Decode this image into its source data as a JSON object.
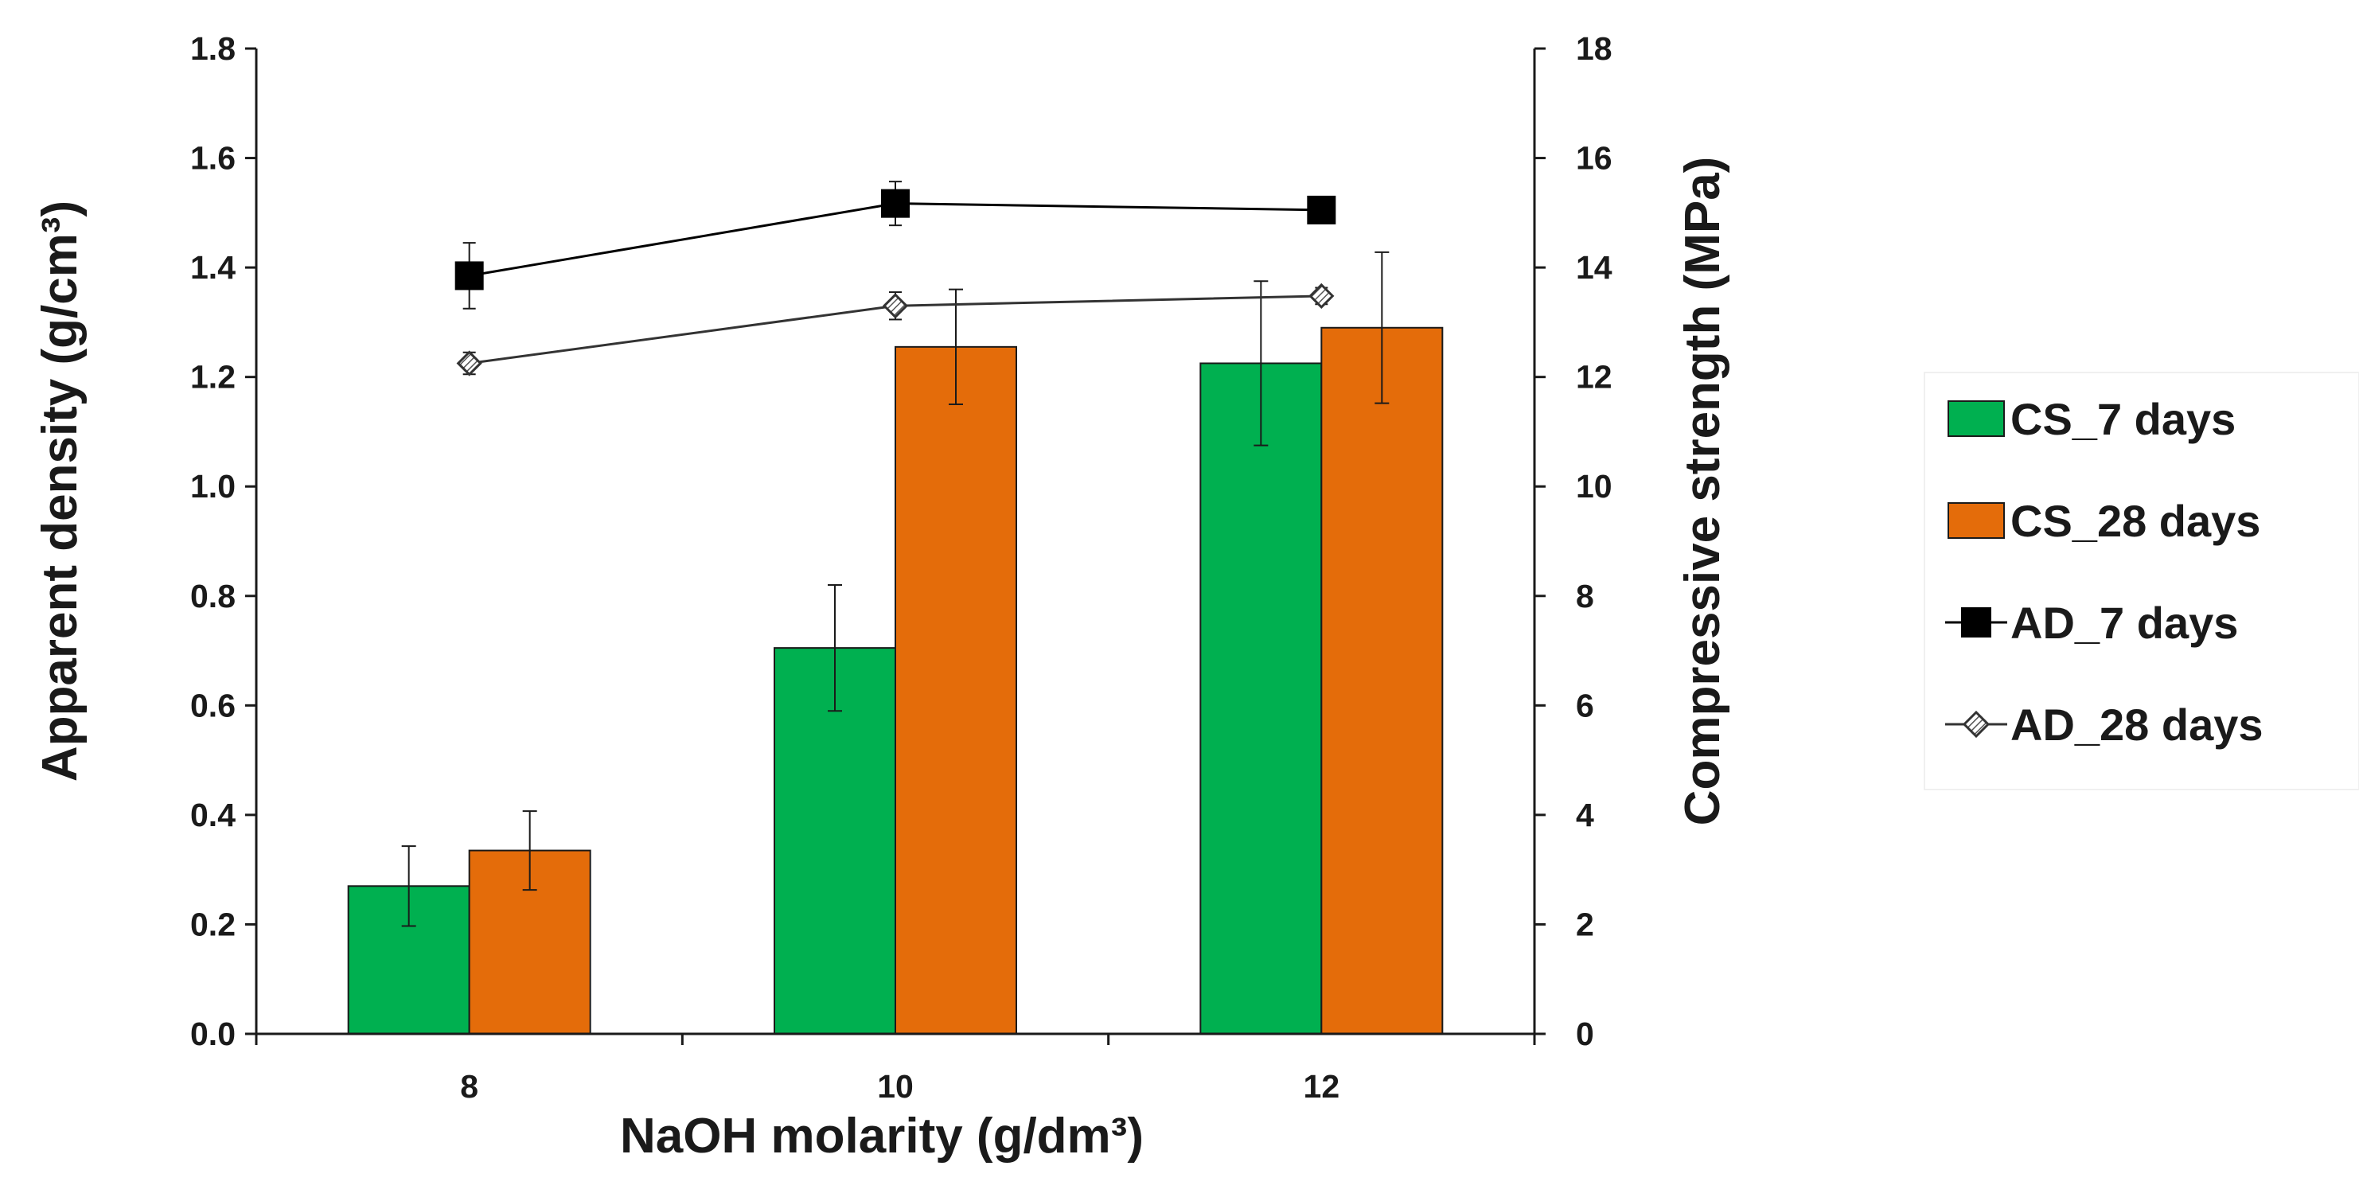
{
  "chart_data": {
    "type": "bar",
    "categories": [
      "8",
      "10",
      "12"
    ],
    "xlabel": "NaOH molarity (g/dm³)",
    "ylabel_left": "Apparent density (g/cm³)",
    "ylabel_right": "Compressive strength (MPa)",
    "ylim_left": [
      0,
      1.8
    ],
    "ylim_right": [
      0,
      18
    ],
    "yticks_left": [
      "0.0",
      "0.2",
      "0.4",
      "0.6",
      "0.8",
      "1.0",
      "1.2",
      "1.4",
      "1.6",
      "1.8"
    ],
    "yticks_right": [
      "0",
      "2",
      "4",
      "6",
      "8",
      "10",
      "12",
      "14",
      "16",
      "18"
    ],
    "grid": false,
    "legend_position": "right",
    "series": [
      {
        "name": "CS_7 days",
        "kind": "bar",
        "axis": "right",
        "color": "#00b050",
        "values": [
          2.7,
          7.05,
          12.25
        ],
        "errors": [
          0.73,
          1.15,
          1.5
        ]
      },
      {
        "name": "CS_28 days",
        "kind": "bar",
        "axis": "right",
        "color": "#e46c0a",
        "values": [
          3.35,
          12.55,
          12.9
        ],
        "errors": [
          0.72,
          1.05,
          1.38
        ]
      },
      {
        "name": "AD_7 days",
        "kind": "line",
        "axis": "left",
        "color": "#000000",
        "marker": "square",
        "values": [
          1.385,
          1.517,
          1.505
        ],
        "errors": [
          0.06,
          0.04,
          0.015
        ]
      },
      {
        "name": "AD_28 days",
        "kind": "line",
        "axis": "left",
        "color": "#333333",
        "marker": "diamond",
        "values": [
          1.225,
          1.33,
          1.348
        ],
        "errors": [
          0.02,
          0.025,
          0.015
        ]
      }
    ]
  }
}
